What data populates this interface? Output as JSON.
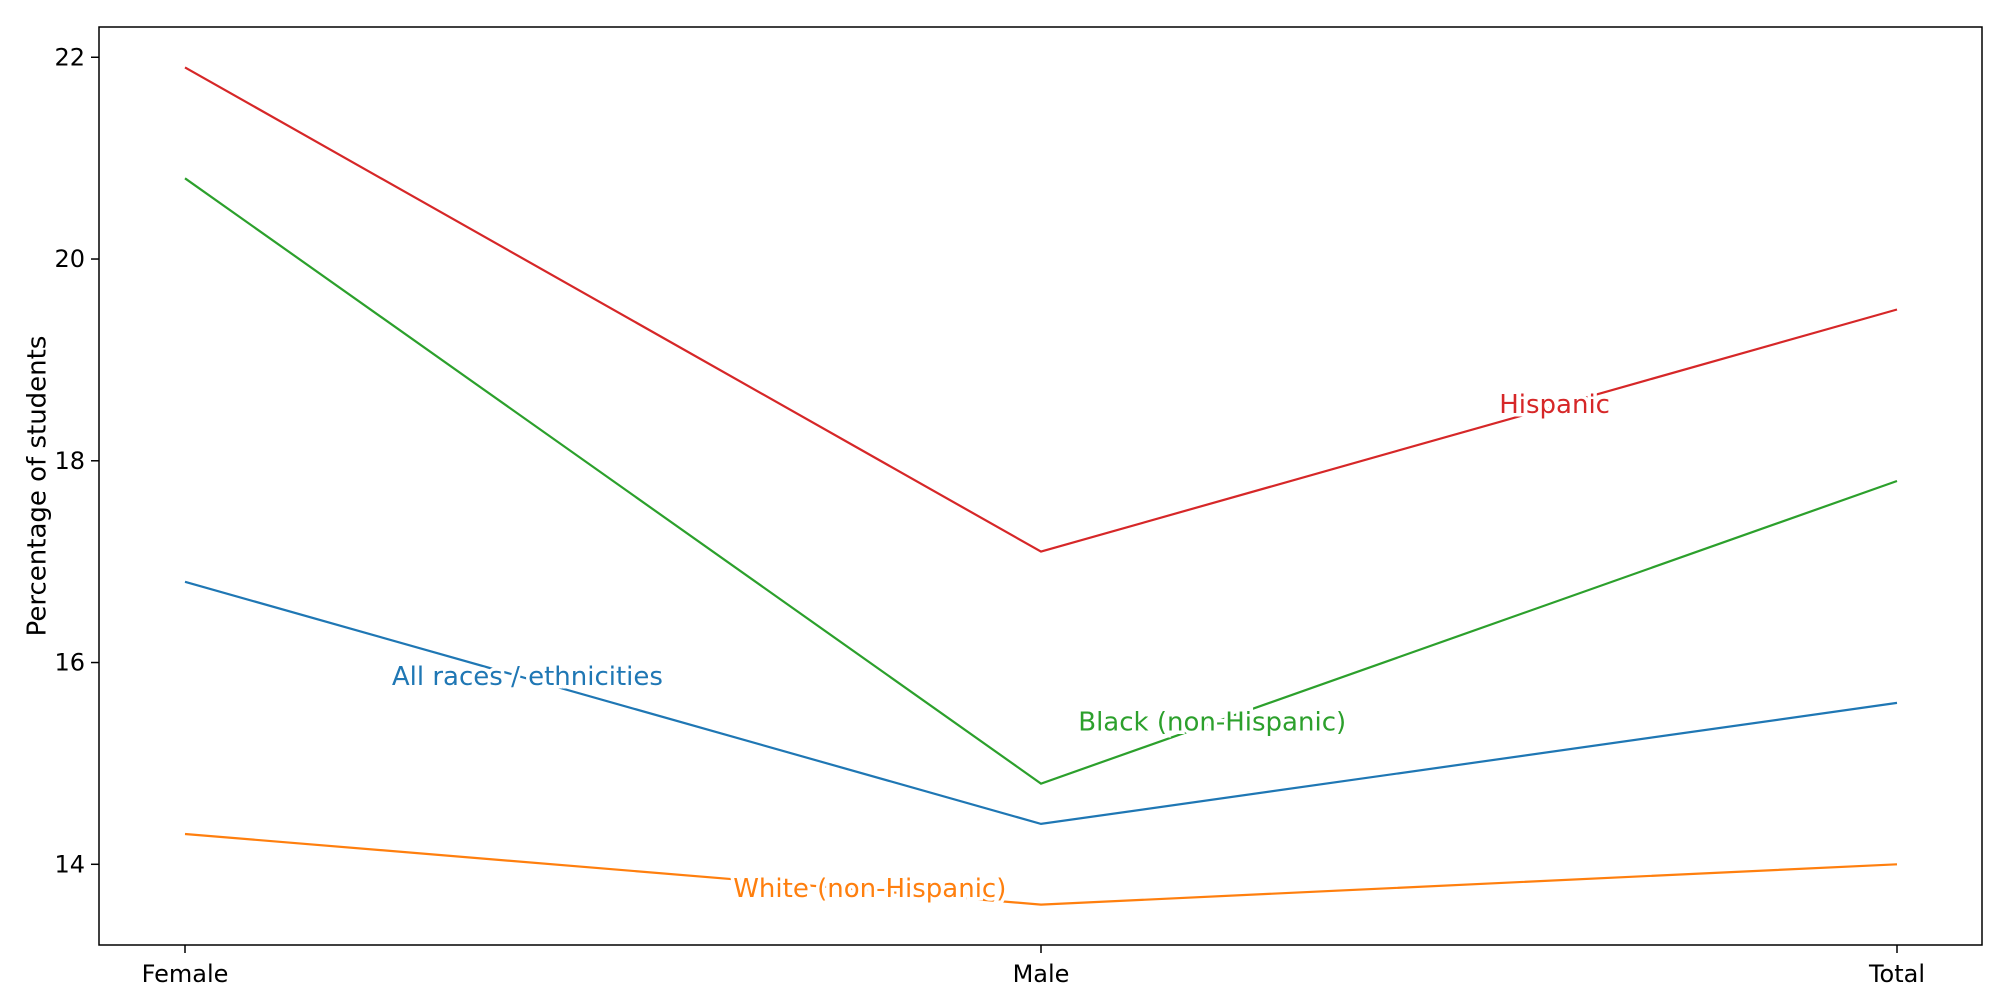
{
  "chart_data": {
    "type": "line",
    "title": "",
    "xlabel": "",
    "ylabel": "Percentage of students",
    "categories": [
      "Female",
      "Male",
      "Total"
    ],
    "ylim": [
      13.2,
      22.3
    ],
    "yticks": [
      14,
      16,
      18,
      20,
      22
    ],
    "grid": false,
    "legend": "none",
    "series": [
      {
        "name": "All races / ethnicities",
        "values": [
          16.8,
          14.4,
          15.6
        ],
        "color": "#1f77b4",
        "label_anchor": {
          "x": 0.4,
          "y": 15.85
        }
      },
      {
        "name": "White (non-Hispanic)",
        "values": [
          14.3,
          13.6,
          14.0
        ],
        "color": "#ff7f0e",
        "label_anchor": {
          "x": 0.8,
          "y": 13.75
        }
      },
      {
        "name": "Black (non-Hispanic)",
        "values": [
          20.8,
          14.8,
          17.8
        ],
        "color": "#2ca02c",
        "label_anchor": {
          "x": 1.2,
          "y": 15.4
        }
      },
      {
        "name": "Hispanic",
        "values": [
          21.9,
          17.1,
          19.5
        ],
        "color": "#d62728",
        "label_anchor": {
          "x": 1.6,
          "y": 18.55
        }
      }
    ]
  }
}
